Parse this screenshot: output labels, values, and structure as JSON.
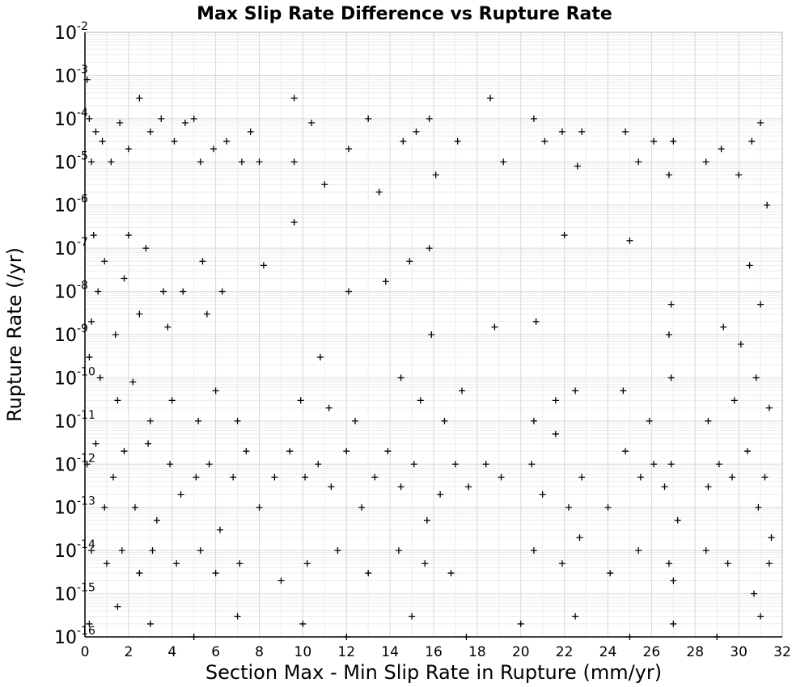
{
  "chart_data": {
    "type": "scatter",
    "title": "Max Slip Rate Difference vs Rupture Rate",
    "xlabel": "Section Max - Min Slip Rate in Rupture (mm/yr)",
    "ylabel": "Rupture Rate (/yr)",
    "xlim": [
      0,
      32
    ],
    "ylim": [
      1e-16,
      0.01
    ],
    "y_scale": "log",
    "grid": true,
    "marker": "+",
    "marker_color": "#000000",
    "x_ticks": [
      "0",
      "2",
      "4",
      "6",
      "8",
      "10",
      "12",
      "14",
      "16",
      "18",
      "20",
      "22",
      "24",
      "26",
      "28",
      "30",
      "32"
    ],
    "y_ticks": [
      {
        "base": "10",
        "exp": "-16"
      },
      {
        "base": "10",
        "exp": "-15"
      },
      {
        "base": "10",
        "exp": "-14"
      },
      {
        "base": "10",
        "exp": "-13"
      },
      {
        "base": "10",
        "exp": "-12"
      },
      {
        "base": "10",
        "exp": "-11"
      },
      {
        "base": "10",
        "exp": "-10"
      },
      {
        "base": "10",
        "exp": "-9"
      },
      {
        "base": "10",
        "exp": "-8"
      },
      {
        "base": "10",
        "exp": "-7"
      },
      {
        "base": "10",
        "exp": "-6"
      },
      {
        "base": "10",
        "exp": "-5"
      },
      {
        "base": "10",
        "exp": "-4"
      },
      {
        "base": "10",
        "exp": "-3"
      },
      {
        "base": "10",
        "exp": "-2"
      }
    ],
    "series": [
      {
        "points": [
          [
            0.1,
            0.0008
          ],
          [
            0.2,
            0.0001
          ],
          [
            0.5,
            5e-05
          ],
          [
            0.3,
            1e-05
          ],
          [
            0.8,
            3e-05
          ],
          [
            1.2,
            1e-05
          ],
          [
            1.6,
            8e-05
          ],
          [
            2.0,
            2e-05
          ],
          [
            2.5,
            0.0003
          ],
          [
            3.0,
            5e-05
          ],
          [
            3.5,
            0.0001
          ],
          [
            4.1,
            3e-05
          ],
          [
            4.6,
            8e-05
          ],
          [
            5.0,
            0.0001
          ],
          [
            5.3,
            1e-05
          ],
          [
            5.9,
            2e-05
          ],
          [
            6.5,
            3e-05
          ],
          [
            7.2,
            1e-05
          ],
          [
            7.6,
            5e-05
          ],
          [
            8.0,
            1e-05
          ],
          [
            9.6,
            0.0003
          ],
          [
            9.6,
            1e-05
          ],
          [
            10.4,
            8e-05
          ],
          [
            11.0,
            3e-06
          ],
          [
            12.1,
            2e-05
          ],
          [
            13.0,
            0.0001
          ],
          [
            13.5,
            2e-06
          ],
          [
            14.6,
            3e-05
          ],
          [
            15.2,
            5e-05
          ],
          [
            15.8,
            0.0001
          ],
          [
            16.1,
            5e-06
          ],
          [
            17.1,
            3e-05
          ],
          [
            18.6,
            0.0003
          ],
          [
            19.2,
            1e-05
          ],
          [
            20.6,
            0.0001
          ],
          [
            21.1,
            3e-05
          ],
          [
            21.9,
            5e-05
          ],
          [
            22.6,
            8e-06
          ],
          [
            22.8,
            5e-05
          ],
          [
            24.8,
            5e-05
          ],
          [
            25.4,
            1e-05
          ],
          [
            26.1,
            3e-05
          ],
          [
            26.8,
            5e-06
          ],
          [
            27.0,
            3e-05
          ],
          [
            28.5,
            1e-05
          ],
          [
            29.2,
            2e-05
          ],
          [
            30.0,
            5e-06
          ],
          [
            30.6,
            3e-05
          ],
          [
            31.0,
            8e-05
          ],
          [
            31.3,
            1e-06
          ],
          [
            0.4,
            2e-07
          ],
          [
            0.9,
            5e-08
          ],
          [
            2.0,
            2e-07
          ],
          [
            2.8,
            1e-07
          ],
          [
            5.4,
            5e-08
          ],
          [
            8.2,
            4e-08
          ],
          [
            9.6,
            4e-07
          ],
          [
            14.9,
            5e-08
          ],
          [
            15.8,
            1e-07
          ],
          [
            22.0,
            2e-07
          ],
          [
            25.0,
            1.5e-07
          ],
          [
            30.5,
            4e-08
          ],
          [
            0.6,
            1e-08
          ],
          [
            1.8,
            2e-08
          ],
          [
            3.6,
            1e-08
          ],
          [
            4.5,
            1e-08
          ],
          [
            6.3,
            1e-08
          ],
          [
            12.1,
            1e-08
          ],
          [
            13.8,
            1.7e-08
          ],
          [
            26.9,
            5e-09
          ],
          [
            31.0,
            5e-09
          ],
          [
            0.3,
            2e-09
          ],
          [
            1.4,
            1e-09
          ],
          [
            2.5,
            3e-09
          ],
          [
            3.8,
            1.5e-09
          ],
          [
            5.6,
            3e-09
          ],
          [
            10.8,
            3e-10
          ],
          [
            15.9,
            1e-09
          ],
          [
            18.8,
            1.5e-09
          ],
          [
            20.7,
            2e-09
          ],
          [
            26.8,
            1e-09
          ],
          [
            29.3,
            1.5e-09
          ],
          [
            30.1,
            6e-10
          ],
          [
            0.2,
            3e-10
          ],
          [
            0.7,
            1e-10
          ],
          [
            1.5,
            3e-11
          ],
          [
            2.2,
            8e-11
          ],
          [
            3.0,
            1e-11
          ],
          [
            4.0,
            3e-11
          ],
          [
            5.2,
            1e-11
          ],
          [
            6.0,
            5e-11
          ],
          [
            7.0,
            1e-11
          ],
          [
            9.9,
            3e-11
          ],
          [
            11.2,
            2e-11
          ],
          [
            12.4,
            1e-11
          ],
          [
            14.5,
            1e-10
          ],
          [
            15.4,
            3e-11
          ],
          [
            16.5,
            1e-11
          ],
          [
            17.3,
            5e-11
          ],
          [
            20.6,
            1e-11
          ],
          [
            21.6,
            3e-11
          ],
          [
            22.5,
            5e-11
          ],
          [
            24.7,
            5e-11
          ],
          [
            25.9,
            1e-11
          ],
          [
            26.9,
            1e-10
          ],
          [
            28.6,
            1e-11
          ],
          [
            29.8,
            3e-11
          ],
          [
            30.8,
            1e-10
          ],
          [
            31.4,
            2e-11
          ],
          [
            0.1,
            1e-12
          ],
          [
            0.5,
            3e-12
          ],
          [
            0.9,
            1e-13
          ],
          [
            1.3,
            5e-13
          ],
          [
            1.8,
            2e-12
          ],
          [
            2.3,
            1e-13
          ],
          [
            2.9,
            3e-12
          ],
          [
            3.3,
            5e-14
          ],
          [
            3.9,
            1e-12
          ],
          [
            4.4,
            2e-13
          ],
          [
            5.1,
            5e-13
          ],
          [
            5.7,
            1e-12
          ],
          [
            6.2,
            3e-14
          ],
          [
            6.8,
            5e-13
          ],
          [
            7.4,
            2e-12
          ],
          [
            8.0,
            1e-13
          ],
          [
            8.7,
            5e-13
          ],
          [
            9.4,
            2e-12
          ],
          [
            10.1,
            5e-13
          ],
          [
            10.7,
            1e-12
          ],
          [
            11.3,
            3e-13
          ],
          [
            12.0,
            2e-12
          ],
          [
            12.7,
            1e-13
          ],
          [
            13.3,
            5e-13
          ],
          [
            13.9,
            2e-12
          ],
          [
            14.5,
            3e-13
          ],
          [
            15.1,
            1e-12
          ],
          [
            15.7,
            5e-14
          ],
          [
            16.3,
            2e-13
          ],
          [
            17.0,
            1e-12
          ],
          [
            17.6,
            3e-13
          ],
          [
            18.4,
            1e-12
          ],
          [
            19.1,
            5e-13
          ],
          [
            20.5,
            1e-12
          ],
          [
            21.0,
            2e-13
          ],
          [
            21.6,
            5e-12
          ],
          [
            22.2,
            1e-13
          ],
          [
            22.8,
            5e-13
          ],
          [
            24.0,
            1e-13
          ],
          [
            24.8,
            2e-12
          ],
          [
            25.5,
            5e-13
          ],
          [
            26.1,
            1e-12
          ],
          [
            26.6,
            3e-13
          ],
          [
            26.9,
            1e-12
          ],
          [
            27.2,
            5e-14
          ],
          [
            28.6,
            3e-13
          ],
          [
            29.1,
            1e-12
          ],
          [
            29.7,
            5e-13
          ],
          [
            30.4,
            2e-12
          ],
          [
            30.9,
            1e-13
          ],
          [
            31.2,
            5e-13
          ],
          [
            31.5,
            2e-14
          ],
          [
            0.3,
            1e-14
          ],
          [
            1.0,
            5e-15
          ],
          [
            1.7,
            1e-14
          ],
          [
            2.5,
            3e-15
          ],
          [
            3.1,
            1e-14
          ],
          [
            4.2,
            5e-15
          ],
          [
            5.3,
            1e-14
          ],
          [
            6.0,
            3e-15
          ],
          [
            7.1,
            5e-15
          ],
          [
            9.0,
            2e-15
          ],
          [
            10.2,
            5e-15
          ],
          [
            11.6,
            1e-14
          ],
          [
            13.0,
            3e-15
          ],
          [
            14.4,
            1e-14
          ],
          [
            15.6,
            5e-15
          ],
          [
            16.8,
            3e-15
          ],
          [
            20.6,
            1e-14
          ],
          [
            21.9,
            5e-15
          ],
          [
            22.7,
            2e-14
          ],
          [
            24.1,
            3e-15
          ],
          [
            25.4,
            1e-14
          ],
          [
            26.8,
            5e-15
          ],
          [
            27.0,
            2e-15
          ],
          [
            28.5,
            1e-14
          ],
          [
            29.5,
            5e-15
          ],
          [
            30.7,
            1e-15
          ],
          [
            31.4,
            5e-15
          ],
          [
            0.2,
            2e-16
          ],
          [
            1.5,
            5e-16
          ],
          [
            3.0,
            2e-16
          ],
          [
            5.0,
            1e-16
          ],
          [
            7.0,
            3e-16
          ],
          [
            10.0,
            2e-16
          ],
          [
            12.0,
            1e-16
          ],
          [
            15.0,
            3e-16
          ],
          [
            17.5,
            1e-16
          ],
          [
            20.0,
            2e-16
          ],
          [
            22.5,
            3e-16
          ],
          [
            25.0,
            1e-16
          ],
          [
            27.0,
            2e-16
          ],
          [
            29.0,
            1e-16
          ],
          [
            31.0,
            3e-16
          ]
        ]
      }
    ]
  }
}
